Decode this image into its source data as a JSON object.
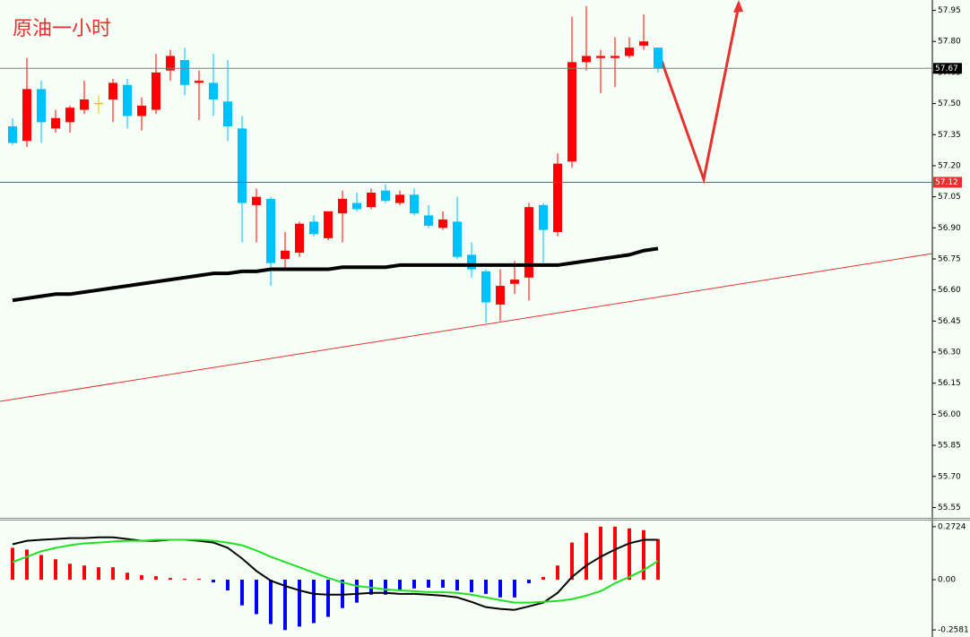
{
  "chart_data": [
    {
      "type": "candlestick",
      "title": "原油一小时",
      "bull_color": "#ff0000",
      "bear_color": "#00bfff",
      "doji_color": "#e8c000",
      "open": [
        57.39,
        57.32,
        57.57,
        57.38,
        57.41,
        57.47,
        57.5,
        57.52,
        57.59,
        57.44,
        57.47,
        57.66,
        57.71,
        57.6,
        57.6,
        57.51,
        57.38,
        57.01,
        57.04,
        56.75,
        56.78,
        56.93,
        56.85,
        56.97,
        57.02,
        57.0,
        57.08,
        57.02,
        57.06,
        56.96,
        56.9,
        56.93,
        56.77,
        56.69,
        56.53,
        56.63,
        56.66,
        57.01,
        56.88,
        57.22,
        57.7,
        57.72,
        57.72,
        57.73,
        57.78,
        57.77
      ],
      "high": [
        57.43,
        57.72,
        57.61,
        57.47,
        57.49,
        57.61,
        57.54,
        57.62,
        57.62,
        57.53,
        57.74,
        57.76,
        57.77,
        57.66,
        57.74,
        57.71,
        57.44,
        57.09,
        57.05,
        56.88,
        56.93,
        56.96,
        56.98,
        57.08,
        57.07,
        57.09,
        57.11,
        57.08,
        57.09,
        57.01,
        56.98,
        57.05,
        56.83,
        56.7,
        56.7,
        56.74,
        57.02,
        57.02,
        57.26,
        57.92,
        57.97,
        57.76,
        57.82,
        57.82,
        57.93,
        57.77
      ],
      "low": [
        57.3,
        57.29,
        57.31,
        57.36,
        57.36,
        57.45,
        57.45,
        57.41,
        57.38,
        57.37,
        57.45,
        57.61,
        57.54,
        57.42,
        57.44,
        57.32,
        56.83,
        56.83,
        56.62,
        56.7,
        56.76,
        56.86,
        56.84,
        56.83,
        56.98,
        56.99,
        57.02,
        57.01,
        56.96,
        56.9,
        56.89,
        56.75,
        56.66,
        56.44,
        56.45,
        56.58,
        56.55,
        56.73,
        56.86,
        57.19,
        57.66,
        57.55,
        57.58,
        57.72,
        57.76,
        57.65
      ],
      "close": [
        57.31,
        57.57,
        57.41,
        57.43,
        57.48,
        57.52,
        57.5,
        57.6,
        57.44,
        57.49,
        57.65,
        57.73,
        57.59,
        57.61,
        57.52,
        57.39,
        57.02,
        57.05,
        56.73,
        56.79,
        56.92,
        56.87,
        56.98,
        57.04,
        56.99,
        57.07,
        57.03,
        57.06,
        56.97,
        56.91,
        56.94,
        56.76,
        56.7,
        56.54,
        56.62,
        56.65,
        57.0,
        56.89,
        57.21,
        57.7,
        57.73,
        57.73,
        57.73,
        57.77,
        57.8,
        57.67
      ],
      "series": [
        {
          "color": "#000000",
          "values": [
            56.55,
            56.56,
            56.57,
            56.58,
            56.58,
            56.59,
            56.6,
            56.61,
            56.62,
            56.63,
            56.64,
            56.65,
            56.66,
            56.67,
            56.68,
            56.68,
            56.69,
            56.69,
            56.7,
            56.7,
            56.7,
            56.7,
            56.7,
            56.71,
            56.71,
            56.71,
            56.71,
            56.72,
            56.72,
            56.72,
            56.72,
            56.72,
            56.72,
            56.72,
            56.72,
            56.72,
            56.72,
            56.72,
            56.72,
            56.73,
            56.74,
            56.75,
            56.76,
            56.77,
            56.79,
            56.8
          ]
        }
      ],
      "hlines": [
        {
          "value": 57.67,
          "color": "#808080",
          "label_color": "#000000"
        },
        {
          "value": 57.12,
          "color": "#e8302f",
          "label_color": "#e8302f"
        }
      ],
      "ylim": [
        55.5,
        58.0
      ],
      "yticks": [
        57.95,
        {
          "value": 57.8,
          "label": "57.80"
        },
        57.65,
        {
          "value": 57.5,
          "label": "57.50"
        },
        57.35,
        {
          "value": 57.2,
          "label": "57.20"
        },
        57.05,
        {
          "value": 56.9,
          "label": "56.90"
        },
        56.75,
        {
          "value": 56.6,
          "label": "56.60"
        },
        56.45,
        {
          "value": 56.3,
          "label": "56.30"
        },
        56.15,
        {
          "value": 56.0,
          "label": "56.00"
        },
        55.85,
        {
          "value": 55.7,
          "label": "55.70"
        },
        55.55
      ]
    },
    {
      "type": "macd",
      "pos_color": "#ff0000",
      "neg_color": "#0000ff",
      "values": [
        0.164,
        0.155,
        0.127,
        0.105,
        0.082,
        0.073,
        0.064,
        0.064,
        0.036,
        0.023,
        0.018,
        0.009,
        0.005,
        0.005,
        -0.014,
        -0.055,
        -0.132,
        -0.177,
        -0.228,
        -0.259,
        -0.241,
        -0.223,
        -0.191,
        -0.146,
        -0.118,
        -0.077,
        -0.077,
        -0.055,
        -0.045,
        -0.041,
        -0.041,
        -0.055,
        -0.064,
        -0.073,
        -0.091,
        -0.091,
        -0.018,
        0.014,
        0.073,
        0.191,
        0.241,
        0.273,
        0.273,
        0.264,
        0.255,
        0.209
      ],
      "series": [
        {
          "color": "#000000",
          "values": [
            0.182,
            0.2,
            0.205,
            0.209,
            0.214,
            0.214,
            0.218,
            0.218,
            0.209,
            0.2,
            0.2,
            0.205,
            0.205,
            0.2,
            0.191,
            0.164,
            0.109,
            0.045,
            -0.005,
            -0.032,
            -0.055,
            -0.073,
            -0.077,
            -0.077,
            -0.073,
            -0.068,
            -0.068,
            -0.073,
            -0.073,
            -0.077,
            -0.082,
            -0.091,
            -0.114,
            -0.141,
            -0.15,
            -0.155,
            -0.137,
            -0.118,
            -0.068,
            0.014,
            0.073,
            0.118,
            0.155,
            0.187,
            0.205,
            0.205
          ]
        },
        {
          "color": "#22e022",
          "values": [
            0.091,
            0.118,
            0.146,
            0.164,
            0.177,
            0.187,
            0.191,
            0.196,
            0.2,
            0.2,
            0.205,
            0.205,
            0.205,
            0.205,
            0.2,
            0.191,
            0.177,
            0.15,
            0.118,
            0.091,
            0.064,
            0.036,
            0.009,
            -0.014,
            -0.032,
            -0.041,
            -0.05,
            -0.055,
            -0.059,
            -0.064,
            -0.064,
            -0.068,
            -0.077,
            -0.091,
            -0.105,
            -0.118,
            -0.118,
            -0.114,
            -0.109,
            -0.1,
            -0.082,
            -0.059,
            -0.018,
            0.014,
            0.05,
            0.096
          ]
        }
      ],
      "ylim": [
        -0.2946,
        0.3088
      ],
      "yticks": [
        0.2724,
        {
          "value": 0,
          "label": "0.00"
        },
        -0.2581
      ]
    }
  ]
}
